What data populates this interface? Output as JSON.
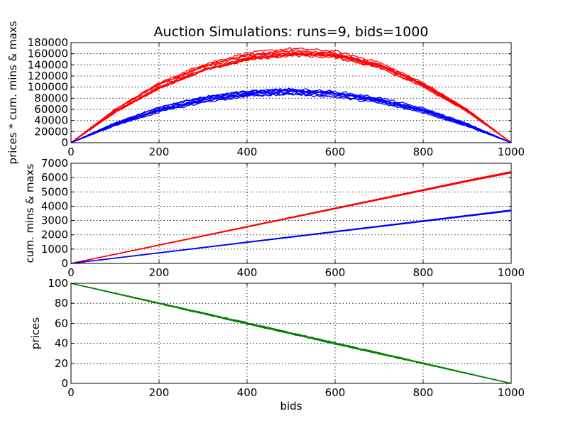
{
  "chart_data": [
    {
      "type": "line",
      "title": "Auction Simulations: runs=9, bids=1000",
      "xlabel": "",
      "ylabel": "prices * cum. mins & maxs",
      "xlim": [
        0,
        1000
      ],
      "ylim": [
        0,
        180000
      ],
      "xticks": [
        "0",
        "200",
        "400",
        "600",
        "800",
        "1000"
      ],
      "yticks": [
        "0",
        "20000",
        "40000",
        "60000",
        "80000",
        "100000",
        "120000",
        "140000",
        "160000",
        "180000"
      ],
      "grid": true,
      "runs": 9,
      "x": [
        0,
        100,
        200,
        300,
        400,
        500,
        600,
        700,
        800,
        900,
        1000
      ],
      "series": [
        {
          "color": "#ff0000",
          "values": [
            0,
            57000,
            102000,
            134000,
            154000,
            162000,
            158000,
            139000,
            104000,
            58000,
            0
          ]
        },
        {
          "color": "#0000ff",
          "values": [
            0,
            33000,
            59000,
            77000,
            88000,
            92000,
            87000,
            76000,
            58000,
            32000,
            0
          ]
        }
      ]
    },
    {
      "type": "line",
      "title": "",
      "xlabel": "",
      "ylabel": "cum. mins & maxs",
      "xlim": [
        0,
        1000
      ],
      "ylim": [
        0,
        7000
      ],
      "xticks": [
        "0",
        "200",
        "400",
        "600",
        "800",
        "1000"
      ],
      "yticks": [
        "0",
        "1000",
        "2000",
        "3000",
        "4000",
        "5000",
        "6000",
        "7000"
      ],
      "grid": true,
      "runs": 9,
      "x": [
        0,
        100,
        200,
        300,
        400,
        500,
        600,
        700,
        800,
        900,
        1000
      ],
      "series": [
        {
          "color": "#ff0000",
          "values": [
            0,
            640,
            1280,
            1920,
            2560,
            3200,
            3840,
            4480,
            5120,
            5760,
            6370
          ]
        },
        {
          "color": "#0000ff",
          "values": [
            0,
            370,
            740,
            1110,
            1480,
            1850,
            2220,
            2590,
            2960,
            3330,
            3700
          ]
        }
      ]
    },
    {
      "type": "line",
      "title": "",
      "xlabel": "bids",
      "ylabel": "prices",
      "xlim": [
        0,
        1000
      ],
      "ylim": [
        0,
        100
      ],
      "xticks": [
        "0",
        "200",
        "400",
        "600",
        "800",
        "1000"
      ],
      "yticks": [
        "0",
        "20",
        "40",
        "60",
        "80",
        "100"
      ],
      "grid": true,
      "runs": 9,
      "x": [
        0,
        100,
        200,
        300,
        400,
        500,
        600,
        700,
        800,
        900,
        1000
      ],
      "series": [
        {
          "color": "#008000",
          "values": [
            100,
            90,
            80,
            70,
            60,
            50,
            40,
            30,
            20,
            10,
            0
          ]
        }
      ]
    }
  ]
}
